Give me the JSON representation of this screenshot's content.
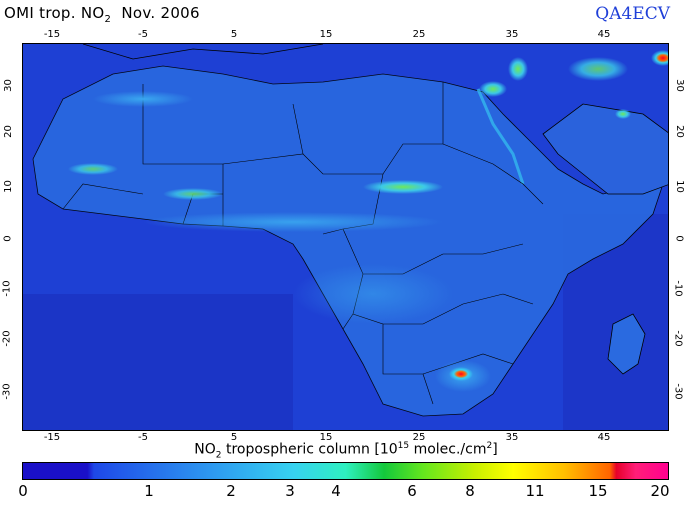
{
  "title": {
    "prefix": "OMI trop. NO",
    "sub": "2",
    "suffix": "Nov. 2006"
  },
  "brand": "QA4ECV",
  "axes": {
    "top": [
      "-15",
      "-5",
      "5",
      "15",
      "25",
      "35",
      "45"
    ],
    "bottom": [
      "-15",
      "-5",
      "5",
      "15",
      "25",
      "35",
      "45"
    ],
    "left": [
      "30",
      "20",
      "10",
      "0",
      "-10",
      "-20",
      "-30"
    ],
    "right": [
      "30",
      "20",
      "10",
      "0",
      "-10",
      "-20",
      "-30"
    ]
  },
  "colorbar": {
    "label_prefix": "NO",
    "label_sub": "2",
    "label_mid": " tropospheric column [10",
    "label_sup": "15",
    "label_unit": " molec./cm",
    "label_sup2": "2",
    "label_end": "]",
    "ticks": [
      "0",
      "1",
      "2",
      "3",
      "4",
      "6",
      "8",
      "11",
      "15",
      "20"
    ]
  },
  "colors": {
    "background": "#1e3ed2",
    "low": "#1a10c8",
    "mid": "#37d2f0",
    "high": "#ff0090"
  }
}
